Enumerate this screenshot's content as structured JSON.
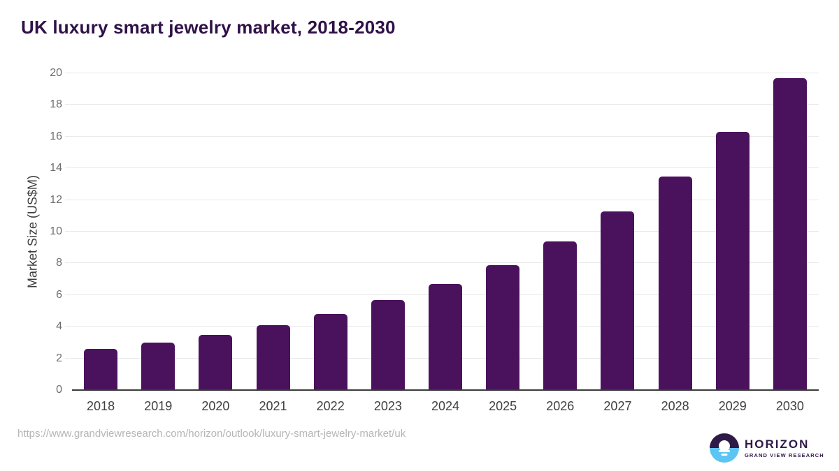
{
  "chart_data": {
    "type": "bar",
    "title": "UK luxury smart jewelry market, 2018-2030",
    "ylabel": "Market Size (US$M)",
    "xlabel": "",
    "categories": [
      "2018",
      "2019",
      "2020",
      "2021",
      "2022",
      "2023",
      "2024",
      "2025",
      "2026",
      "2027",
      "2028",
      "2029",
      "2030"
    ],
    "values": [
      2.6,
      3.0,
      3.5,
      4.1,
      4.8,
      5.7,
      6.7,
      7.9,
      9.4,
      11.3,
      13.5,
      16.3,
      19.7
    ],
    "ylim": [
      0,
      20
    ],
    "ytick_step": 2,
    "grid": true,
    "legend": "none",
    "bar_color": "#4a125c"
  },
  "footer": {
    "source_url": "https://www.grandviewresearch.com/horizon/outlook/luxury-smart-jewelry-market/uk",
    "logo": {
      "name": "HORIZON",
      "tagline": "GRAND VIEW RESEARCH"
    }
  },
  "colors": {
    "title_text": "#2f1148",
    "bar": "#4a125c",
    "gridline": "#e9e9e9",
    "axis_line": "#3a3a3a",
    "y_tick_text": "#6e6e6e",
    "x_tick_text": "#404040",
    "url_text": "#b5b5b5",
    "logo_purple": "#2e1a47",
    "logo_blue": "#5ec5f2",
    "background": "#ffffff"
  }
}
